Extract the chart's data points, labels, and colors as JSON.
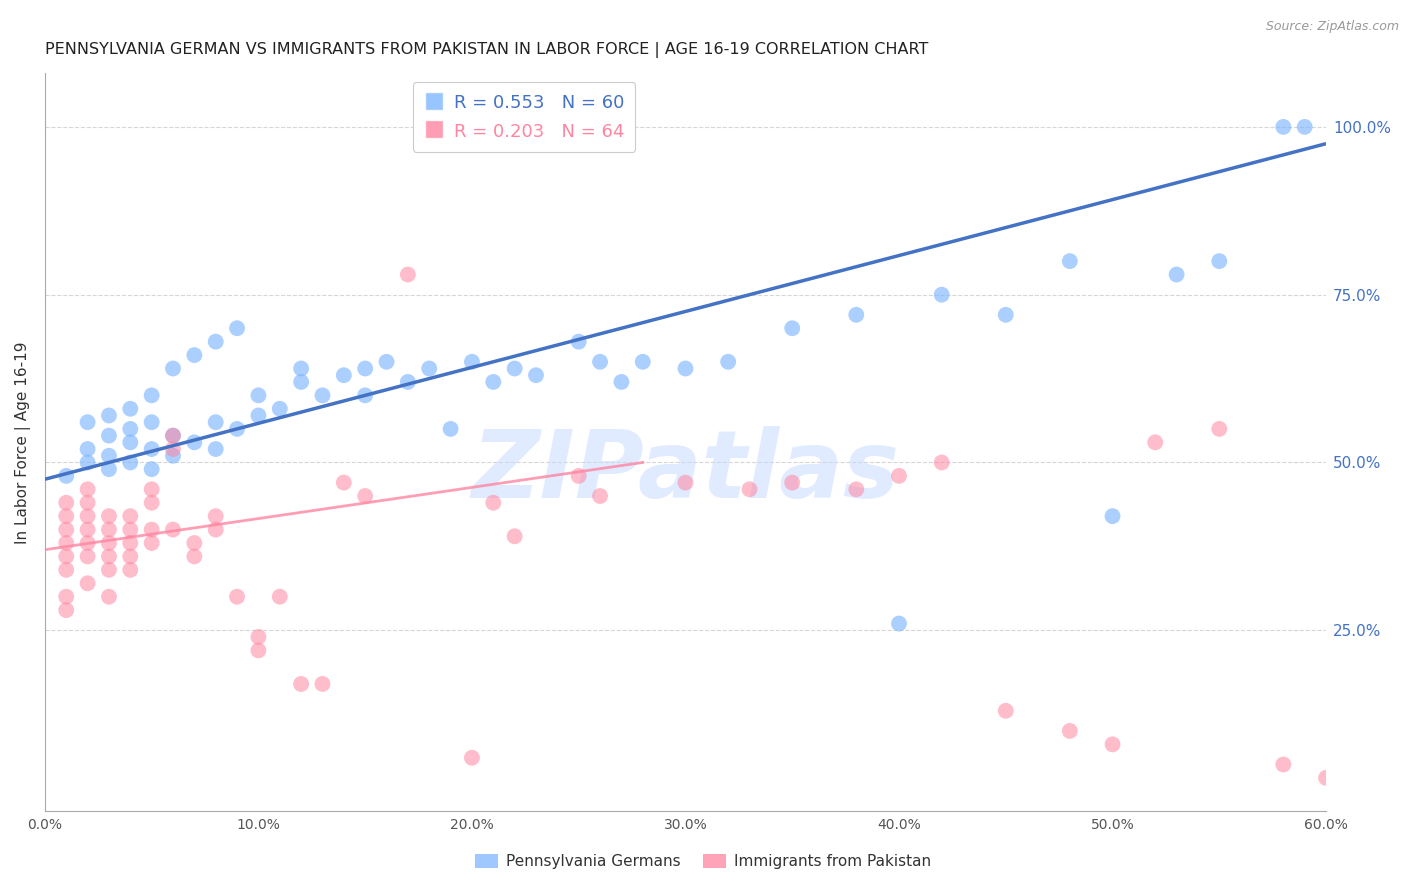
{
  "title": "PENNSYLVANIA GERMAN VS IMMIGRANTS FROM PAKISTAN IN LABOR FORCE | AGE 16-19 CORRELATION CHART",
  "source": "Source: ZipAtlas.com",
  "ylabel": "In Labor Force | Age 16-19",
  "xlim": [
    0.0,
    0.6
  ],
  "ylim": [
    -0.02,
    1.08
  ],
  "xticks": [
    0.0,
    0.1,
    0.2,
    0.3,
    0.4,
    0.5,
    0.6
  ],
  "xticklabels": [
    "0.0%",
    "10.0%",
    "20.0%",
    "30.0%",
    "40.0%",
    "50.0%",
    "60.0%"
  ],
  "yticks_right": [
    0.25,
    0.5,
    0.75,
    1.0
  ],
  "ytick_right_labels": [
    "25.0%",
    "50.0%",
    "75.0%",
    "100.0%"
  ],
  "grid_color": "#cccccc",
  "background_color": "#ffffff",
  "blue_color": "#7EB6FF",
  "pink_color": "#FF85A1",
  "blue_line_color": "#4472C4",
  "pink_line_color": "#FF85A1",
  "watermark": "ZIPatlas",
  "watermark_color": "#C5D9FF",
  "legend_R_blue": "R = 0.553",
  "legend_N_blue": "N = 60",
  "legend_R_pink": "R = 0.203",
  "legend_N_pink": "N = 64",
  "legend_label_blue": "Pennsylvania Germans",
  "legend_label_pink": "Immigrants from Pakistan",
  "blue_scatter_x": [
    0.01,
    0.02,
    0.02,
    0.02,
    0.03,
    0.03,
    0.03,
    0.03,
    0.04,
    0.04,
    0.04,
    0.04,
    0.05,
    0.05,
    0.05,
    0.05,
    0.06,
    0.06,
    0.06,
    0.07,
    0.07,
    0.08,
    0.08,
    0.08,
    0.09,
    0.09,
    0.1,
    0.1,
    0.11,
    0.12,
    0.12,
    0.13,
    0.14,
    0.15,
    0.15,
    0.16,
    0.17,
    0.18,
    0.19,
    0.2,
    0.21,
    0.22,
    0.23,
    0.25,
    0.26,
    0.27,
    0.28,
    0.3,
    0.32,
    0.35,
    0.38,
    0.4,
    0.42,
    0.45,
    0.48,
    0.5,
    0.53,
    0.55,
    0.58,
    0.59
  ],
  "blue_scatter_y": [
    0.48,
    0.5,
    0.52,
    0.56,
    0.49,
    0.51,
    0.54,
    0.57,
    0.5,
    0.53,
    0.55,
    0.58,
    0.49,
    0.52,
    0.56,
    0.6,
    0.51,
    0.54,
    0.64,
    0.53,
    0.66,
    0.52,
    0.56,
    0.68,
    0.55,
    0.7,
    0.57,
    0.6,
    0.58,
    0.62,
    0.64,
    0.6,
    0.63,
    0.6,
    0.64,
    0.65,
    0.62,
    0.64,
    0.55,
    0.65,
    0.62,
    0.64,
    0.63,
    0.68,
    0.65,
    0.62,
    0.65,
    0.64,
    0.65,
    0.7,
    0.72,
    0.26,
    0.75,
    0.72,
    0.8,
    0.42,
    0.78,
    0.8,
    1.0,
    1.0
  ],
  "pink_scatter_x": [
    0.01,
    0.01,
    0.01,
    0.01,
    0.01,
    0.01,
    0.01,
    0.01,
    0.02,
    0.02,
    0.02,
    0.02,
    0.02,
    0.02,
    0.02,
    0.03,
    0.03,
    0.03,
    0.03,
    0.03,
    0.03,
    0.04,
    0.04,
    0.04,
    0.04,
    0.04,
    0.05,
    0.05,
    0.05,
    0.05,
    0.06,
    0.06,
    0.06,
    0.07,
    0.07,
    0.08,
    0.08,
    0.09,
    0.1,
    0.1,
    0.11,
    0.12,
    0.13,
    0.14,
    0.15,
    0.17,
    0.2,
    0.21,
    0.22,
    0.25,
    0.26,
    0.3,
    0.33,
    0.35,
    0.38,
    0.4,
    0.42,
    0.45,
    0.48,
    0.5,
    0.52,
    0.55,
    0.58,
    0.6
  ],
  "pink_scatter_y": [
    0.38,
    0.4,
    0.42,
    0.44,
    0.36,
    0.34,
    0.3,
    0.28,
    0.4,
    0.42,
    0.38,
    0.36,
    0.44,
    0.46,
    0.32,
    0.38,
    0.4,
    0.42,
    0.36,
    0.34,
    0.3,
    0.38,
    0.42,
    0.4,
    0.36,
    0.34,
    0.38,
    0.4,
    0.44,
    0.46,
    0.4,
    0.52,
    0.54,
    0.38,
    0.36,
    0.4,
    0.42,
    0.3,
    0.24,
    0.22,
    0.3,
    0.17,
    0.17,
    0.47,
    0.45,
    0.78,
    0.06,
    0.44,
    0.39,
    0.48,
    0.45,
    0.47,
    0.46,
    0.47,
    0.46,
    0.48,
    0.5,
    0.13,
    0.1,
    0.08,
    0.53,
    0.55,
    0.05,
    0.03
  ],
  "blue_trend_x": [
    0.0,
    0.6
  ],
  "blue_trend_y": [
    0.475,
    0.975
  ],
  "pink_trend_x": [
    0.0,
    0.28
  ],
  "pink_trend_y": [
    0.37,
    0.5
  ],
  "title_fontsize": 11.5,
  "axis_label_fontsize": 11,
  "tick_fontsize": 10,
  "legend_fontsize": 13,
  "watermark_fontsize": 68,
  "source_fontsize": 9,
  "right_tick_color": "#4472C4",
  "title_color": "#222222"
}
